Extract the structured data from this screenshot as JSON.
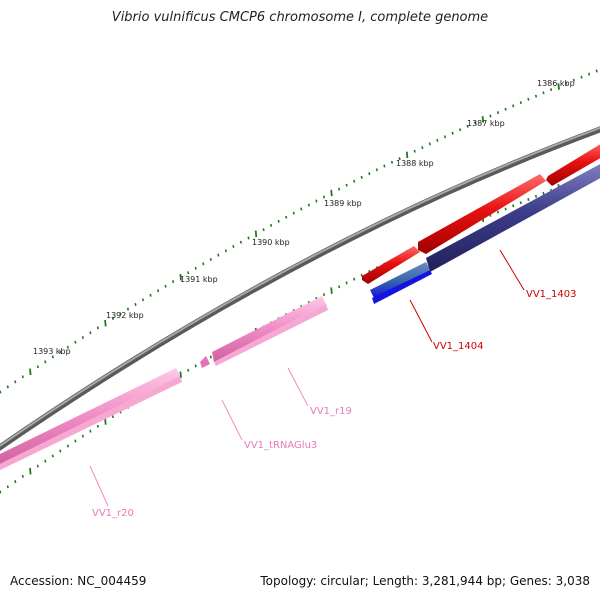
{
  "title": "Vibrio vulnificus CMCP6 chromosome I, complete genome",
  "footer": {
    "accession": "Accession: NC_004459",
    "summary": "Topology: circular; Length: 3,281,944 bp; Genes: 3,038"
  },
  "colors": {
    "backbone": "#7a7a7a",
    "cds_forward": "#e81010",
    "cds_reverse": "#3d3d8a",
    "cds_reverse_alt": "#1414e0",
    "rrna": "#f08cc4",
    "trna": "#e870b8",
    "tick": "#1d7a1d",
    "label_cds": "#cc0000",
    "label_rna": "#e87ab8"
  },
  "ticks": [
    {
      "label": "1386 kbp"
    },
    {
      "label": "1387 kbp"
    },
    {
      "label": "1388 kbp"
    },
    {
      "label": "1389 kbp"
    },
    {
      "label": "1390 kbp"
    },
    {
      "label": "1391 kbp"
    },
    {
      "label": "1392 kbp"
    },
    {
      "label": "1393 kbp"
    }
  ],
  "features": [
    {
      "id": "VV1_1403",
      "label": "VV1_1403"
    },
    {
      "id": "VV1_1404",
      "label": "VV1_1404"
    },
    {
      "id": "VV1_r19",
      "label": "VV1_r19"
    },
    {
      "id": "VV1_tRNAGlu3",
      "label": "VV1_tRNAGlu3"
    },
    {
      "id": "VV1_r20",
      "label": "VV1_r20"
    }
  ]
}
